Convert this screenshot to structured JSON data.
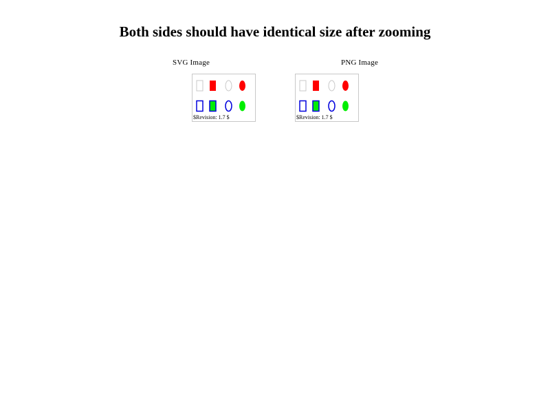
{
  "title": "Both sides should have identical size after zooming",
  "panels": [
    {
      "caption": "SVG Image",
      "revision": "$Revision: 1.7 $"
    },
    {
      "caption": "PNG Image",
      "revision": "$Revision: 1.7 $"
    }
  ],
  "colors": {
    "red": "#ff0000",
    "blue": "#0000dd",
    "green": "#00ee00",
    "light_gray": "#c8c8c8",
    "border": "#c8c8c8"
  }
}
